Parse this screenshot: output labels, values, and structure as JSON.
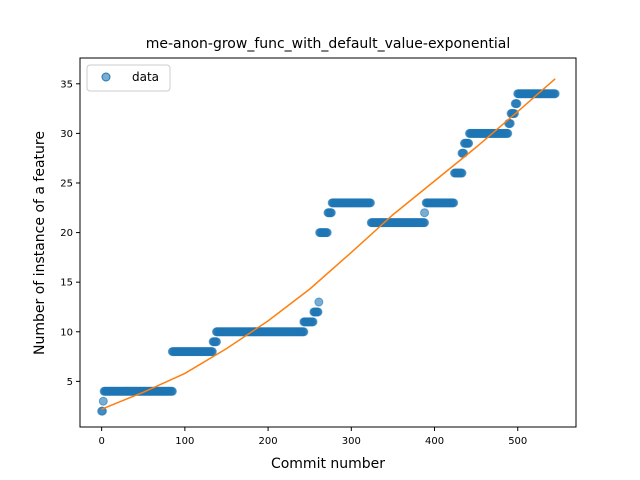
{
  "chart_data": {
    "type": "scatter",
    "title": "me-anon-grow_func_with_default_value-exponential",
    "xlabel": "Commit number",
    "ylabel": "Number of instance of a feature",
    "xlim": [
      -26,
      570
    ],
    "ylim": [
      0.4,
      37.6
    ],
    "xticks": [
      0,
      100,
      200,
      300,
      400,
      500
    ],
    "yticks": [
      5,
      10,
      15,
      20,
      25,
      30,
      35
    ],
    "legend": {
      "position": "top-left",
      "entries": [
        "data"
      ]
    },
    "colors": {
      "data": "#1f77b4",
      "fit": "#ff7f0e"
    },
    "series": [
      {
        "name": "data",
        "kind": "points",
        "segments": [
          {
            "x_start": 0,
            "x_end": 1,
            "y": 2
          },
          {
            "x_start": 2,
            "x_end": 2,
            "y": 3
          },
          {
            "x_start": 3,
            "x_end": 85,
            "y": 4
          },
          {
            "x_start": 85,
            "x_end": 133,
            "y": 8
          },
          {
            "x_start": 134,
            "x_end": 138,
            "y": 9
          },
          {
            "x_start": 138,
            "x_end": 243,
            "y": 10
          },
          {
            "x_start": 243,
            "x_end": 254,
            "y": 11
          },
          {
            "x_start": 255,
            "x_end": 260,
            "y": 12
          },
          {
            "x_start": 261,
            "x_end": 261,
            "y": 13
          },
          {
            "x_start": 262,
            "x_end": 271,
            "y": 20
          },
          {
            "x_start": 272,
            "x_end": 276,
            "y": 22
          },
          {
            "x_start": 277,
            "x_end": 323,
            "y": 23
          },
          {
            "x_start": 324,
            "x_end": 388,
            "y": 21
          },
          {
            "x_start": 388,
            "x_end": 388,
            "y": 22
          },
          {
            "x_start": 390,
            "x_end": 423,
            "y": 23
          },
          {
            "x_start": 424,
            "x_end": 433,
            "y": 26
          },
          {
            "x_start": 433,
            "x_end": 435,
            "y": 28
          },
          {
            "x_start": 436,
            "x_end": 441,
            "y": 29
          },
          {
            "x_start": 442,
            "x_end": 488,
            "y": 30
          },
          {
            "x_start": 489,
            "x_end": 491,
            "y": 31
          },
          {
            "x_start": 492,
            "x_end": 496,
            "y": 32
          },
          {
            "x_start": 497,
            "x_end": 499,
            "y": 33
          },
          {
            "x_start": 500,
            "x_end": 545,
            "y": 34
          }
        ]
      },
      {
        "kind": "line",
        "x": [
          0,
          50,
          100,
          150,
          200,
          250,
          300,
          350,
          400,
          450,
          500,
          545
        ],
        "y": [
          2.2,
          3.9,
          5.8,
          8.3,
          11.1,
          14.3,
          18.0,
          21.8,
          25.2,
          28.6,
          32.2,
          35.5
        ]
      }
    ]
  }
}
